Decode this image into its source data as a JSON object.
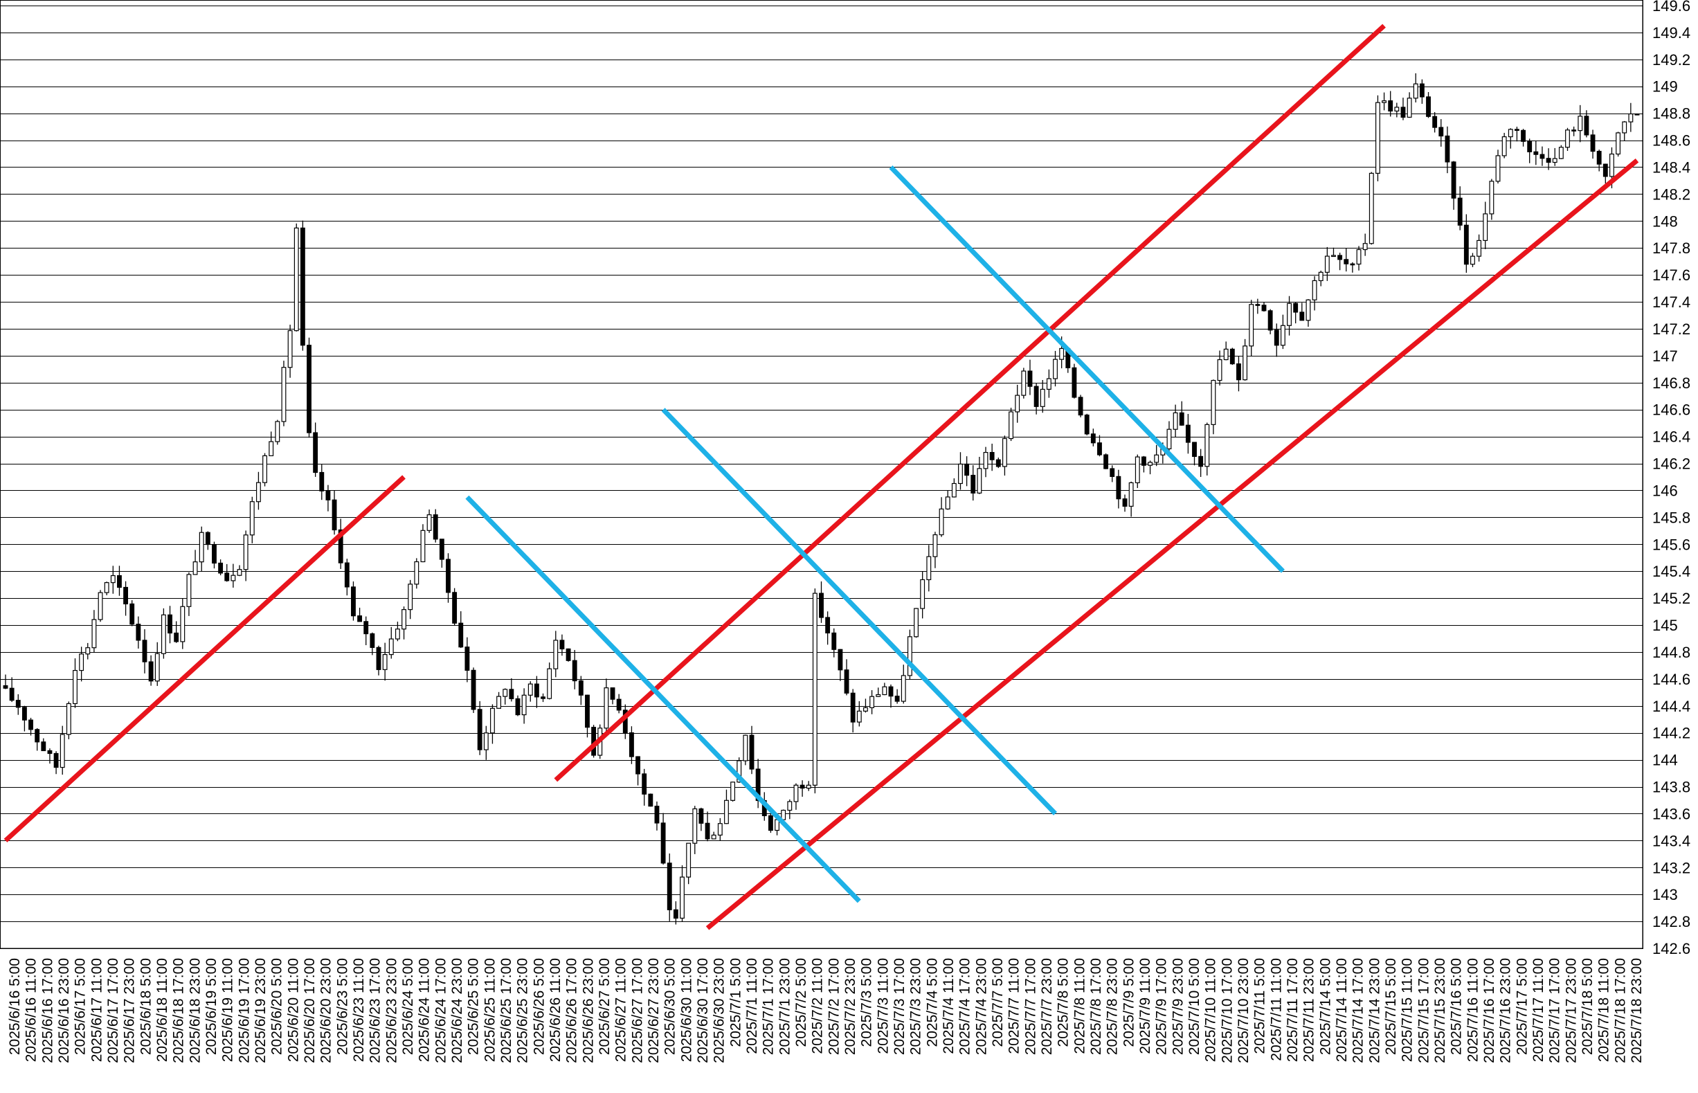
{
  "chart_data": {
    "type": "candlestick",
    "title": "",
    "xlabel": "",
    "ylabel": "",
    "ylim": [
      142.6,
      149.6
    ],
    "y_ticks": [
      142.6,
      142.8,
      143,
      143.2,
      143.4,
      143.6,
      143.8,
      144,
      144.2,
      144.4,
      144.6,
      144.8,
      145,
      145.2,
      145.4,
      145.6,
      145.8,
      146,
      146.2,
      146.4,
      146.6,
      146.8,
      147,
      147.2,
      147.4,
      147.6,
      147.8,
      148,
      148.2,
      148.4,
      148.6,
      148.8,
      149,
      149.2,
      149.4,
      149.6
    ],
    "y_tick_labels": [
      "142.6",
      "142.8",
      "143",
      "143.2",
      "143.4",
      "143.6",
      "143.8",
      "144",
      "144.2",
      "144.4",
      "144.6",
      "144.8",
      "145",
      "145.2",
      "145.4",
      "145.6",
      "145.8",
      "146",
      "146.2",
      "146.4",
      "146.6",
      "146.8",
      "147",
      "147.2",
      "147.4",
      "147.6",
      "147.8",
      "148",
      "148.2",
      "148.4",
      "148.6",
      "148.8",
      "149",
      "149.2",
      "149.4",
      "149.6"
    ],
    "x_tick_labels": [
      "2025/6/16 5:00",
      "2025/6/16 11:00",
      "2025/6/16 17:00",
      "2025/6/16 23:00",
      "2025/6/17 5:00",
      "2025/6/17 11:00",
      "2025/6/17 17:00",
      "2025/6/17 23:00",
      "2025/6/18 5:00",
      "2025/6/18 11:00",
      "2025/6/18 17:00",
      "2025/6/18 23:00",
      "2025/6/19 5:00",
      "2025/6/19 11:00",
      "2025/6/19 17:00",
      "2025/6/19 23:00",
      "2025/6/20 5:00",
      "2025/6/20 11:00",
      "2025/6/20 17:00",
      "2025/6/20 23:00",
      "2025/6/23 5:00",
      "2025/6/23 11:00",
      "2025/6/23 17:00",
      "2025/6/23 23:00",
      "2025/6/24 5:00",
      "2025/6/24 11:00",
      "2025/6/24 17:00",
      "2025/6/24 23:00",
      "2025/6/25 5:00",
      "2025/6/25 11:00",
      "2025/6/25 17:00",
      "2025/6/25 23:00",
      "2025/6/26 5:00",
      "2025/6/26 11:00",
      "2025/6/26 17:00",
      "2025/6/26 23:00",
      "2025/6/27 5:00",
      "2025/6/27 11:00",
      "2025/6/27 17:00",
      "2025/6/27 23:00",
      "2025/6/30 5:00",
      "2025/6/30 11:00",
      "2025/6/30 17:00",
      "2025/6/30 23:00",
      "2025/7/1 5:00",
      "2025/7/1 11:00",
      "2025/7/1 17:00",
      "2025/7/1 23:00",
      "2025/7/2 5:00",
      "2025/7/2 11:00",
      "2025/7/2 17:00",
      "2025/7/2 23:00",
      "2025/7/3 5:00",
      "2025/7/3 11:00",
      "2025/7/3 17:00",
      "2025/7/3 23:00",
      "2025/7/4 5:00",
      "2025/7/4 11:00",
      "2025/7/4 17:00",
      "2025/7/4 23:00",
      "2025/7/7 5:00",
      "2025/7/7 11:00",
      "2025/7/7 17:00",
      "2025/7/7 23:00",
      "2025/7/8 5:00",
      "2025/7/8 11:00",
      "2025/7/8 17:00",
      "2025/7/8 23:00",
      "2025/7/9 5:00",
      "2025/7/9 11:00",
      "2025/7/9 17:00",
      "2025/7/9 23:00",
      "2025/7/10 5:00",
      "2025/7/10 11:00",
      "2025/7/10 17:00",
      "2025/7/10 23:00",
      "2025/7/11 5:00",
      "2025/7/11 11:00",
      "2025/7/11 17:00",
      "2025/7/11 23:00",
      "2025/7/14 5:00",
      "2025/7/14 11:00",
      "2025/7/14 17:00",
      "2025/7/14 23:00",
      "2025/7/15 5:00",
      "2025/7/15 11:00",
      "2025/7/15 17:00",
      "2025/7/15 23:00",
      "2025/7/16 5:00",
      "2025/7/16 11:00",
      "2025/7/16 17:00",
      "2025/7/16 23:00",
      "2025/7/17 5:00",
      "2025/7/17 11:00",
      "2025/7/17 17:00",
      "2025/7/17 23:00",
      "2025/7/18 5:00",
      "2025/7/18 11:00",
      "2025/7/18 17:00",
      "2025/7/18 23:00"
    ],
    "price_path": [
      [
        0,
        144.55
      ],
      [
        3,
        144.4
      ],
      [
        6,
        144.15
      ],
      [
        9,
        143.95
      ],
      [
        12,
        144.7
      ],
      [
        14,
        144.85
      ],
      [
        16,
        145.25
      ],
      [
        18,
        145.35
      ],
      [
        20,
        145.15
      ],
      [
        22,
        144.9
      ],
      [
        24,
        144.6
      ],
      [
        26,
        145.05
      ],
      [
        28,
        144.9
      ],
      [
        30,
        145.35
      ],
      [
        32,
        145.65
      ],
      [
        34,
        145.5
      ],
      [
        36,
        145.35
      ],
      [
        38,
        145.45
      ],
      [
        40,
        145.9
      ],
      [
        42,
        146.25
      ],
      [
        44,
        146.55
      ],
      [
        46,
        147.2
      ],
      [
        47,
        147.95
      ],
      [
        48,
        147.05
      ],
      [
        49,
        146.4
      ],
      [
        50,
        146.1
      ],
      [
        52,
        145.9
      ],
      [
        54,
        145.5
      ],
      [
        56,
        145.05
      ],
      [
        58,
        144.95
      ],
      [
        60,
        144.7
      ],
      [
        62,
        144.9
      ],
      [
        64,
        145.1
      ],
      [
        66,
        145.5
      ],
      [
        68,
        145.85
      ],
      [
        70,
        145.45
      ],
      [
        72,
        145.05
      ],
      [
        74,
        144.65
      ],
      [
        76,
        144.1
      ],
      [
        78,
        144.35
      ],
      [
        80,
        144.55
      ],
      [
        82,
        144.35
      ],
      [
        84,
        144.55
      ],
      [
        86,
        144.45
      ],
      [
        88,
        144.9
      ],
      [
        90,
        144.75
      ],
      [
        92,
        144.45
      ],
      [
        94,
        144.05
      ],
      [
        96,
        144.5
      ],
      [
        98,
        144.4
      ],
      [
        100,
        144.05
      ],
      [
        102,
        143.75
      ],
      [
        104,
        143.55
      ],
      [
        106,
        142.85
      ],
      [
        107,
        142.8
      ],
      [
        108,
        143.1
      ],
      [
        110,
        143.65
      ],
      [
        112,
        143.4
      ],
      [
        114,
        143.55
      ],
      [
        116,
        143.85
      ],
      [
        118,
        144.2
      ],
      [
        120,
        143.7
      ],
      [
        122,
        143.5
      ],
      [
        124,
        143.6
      ],
      [
        126,
        143.8
      ],
      [
        128,
        143.85
      ],
      [
        129,
        145.2
      ],
      [
        131,
        144.95
      ],
      [
        133,
        144.65
      ],
      [
        135,
        144.3
      ],
      [
        137,
        144.4
      ],
      [
        140,
        144.55
      ],
      [
        142,
        144.4
      ],
      [
        144,
        144.9
      ],
      [
        146,
        145.3
      ],
      [
        148,
        145.7
      ],
      [
        150,
        145.95
      ],
      [
        152,
        146.2
      ],
      [
        154,
        146.0
      ],
      [
        156,
        146.3
      ],
      [
        158,
        146.15
      ],
      [
        160,
        146.6
      ],
      [
        162,
        146.85
      ],
      [
        164,
        146.65
      ],
      [
        166,
        146.85
      ],
      [
        168,
        147.05
      ],
      [
        170,
        146.7
      ],
      [
        172,
        146.45
      ],
      [
        174,
        146.3
      ],
      [
        176,
        146.1
      ],
      [
        178,
        145.85
      ],
      [
        180,
        146.25
      ],
      [
        182,
        146.2
      ],
      [
        184,
        146.3
      ],
      [
        186,
        146.55
      ],
      [
        188,
        146.35
      ],
      [
        190,
        146.2
      ],
      [
        192,
        146.85
      ],
      [
        194,
        147.05
      ],
      [
        196,
        146.8
      ],
      [
        198,
        147.4
      ],
      [
        200,
        147.35
      ],
      [
        202,
        147.1
      ],
      [
        204,
        147.4
      ],
      [
        206,
        147.3
      ],
      [
        208,
        147.55
      ],
      [
        210,
        147.75
      ],
      [
        212,
        147.7
      ],
      [
        214,
        147.65
      ],
      [
        216,
        147.85
      ],
      [
        218,
        148.9
      ],
      [
        220,
        148.85
      ],
      [
        222,
        148.8
      ],
      [
        224,
        149.0
      ],
      [
        226,
        148.8
      ],
      [
        228,
        148.6
      ],
      [
        230,
        148.2
      ],
      [
        232,
        147.7
      ],
      [
        234,
        147.85
      ],
      [
        236,
        148.3
      ],
      [
        238,
        148.65
      ],
      [
        240,
        148.7
      ],
      [
        242,
        148.5
      ],
      [
        244,
        148.5
      ],
      [
        246,
        148.45
      ],
      [
        248,
        148.65
      ],
      [
        250,
        148.75
      ],
      [
        252,
        148.55
      ],
      [
        254,
        148.3
      ],
      [
        256,
        148.65
      ],
      [
        258,
        148.8
      ]
    ],
    "trend_lines": [
      {
        "color": "#e8141c",
        "from": [
          0,
          143.4
        ],
        "to": [
          63,
          146.1
        ]
      },
      {
        "color": "#e8141c",
        "from": [
          87,
          143.85
        ],
        "to": [
          218,
          149.45
        ]
      },
      {
        "color": "#e8141c",
        "from": [
          111,
          142.75
        ],
        "to": [
          258,
          148.45
        ]
      },
      {
        "color": "#1eb1e7",
        "from": [
          73,
          145.95
        ],
        "to": [
          135,
          142.95
        ]
      },
      {
        "color": "#1eb1e7",
        "from": [
          104,
          146.6
        ],
        "to": [
          166,
          143.6
        ]
      },
      {
        "color": "#1eb1e7",
        "from": [
          140,
          148.4
        ],
        "to": [
          202,
          145.4
        ]
      }
    ],
    "grid": true,
    "legend": "none"
  }
}
